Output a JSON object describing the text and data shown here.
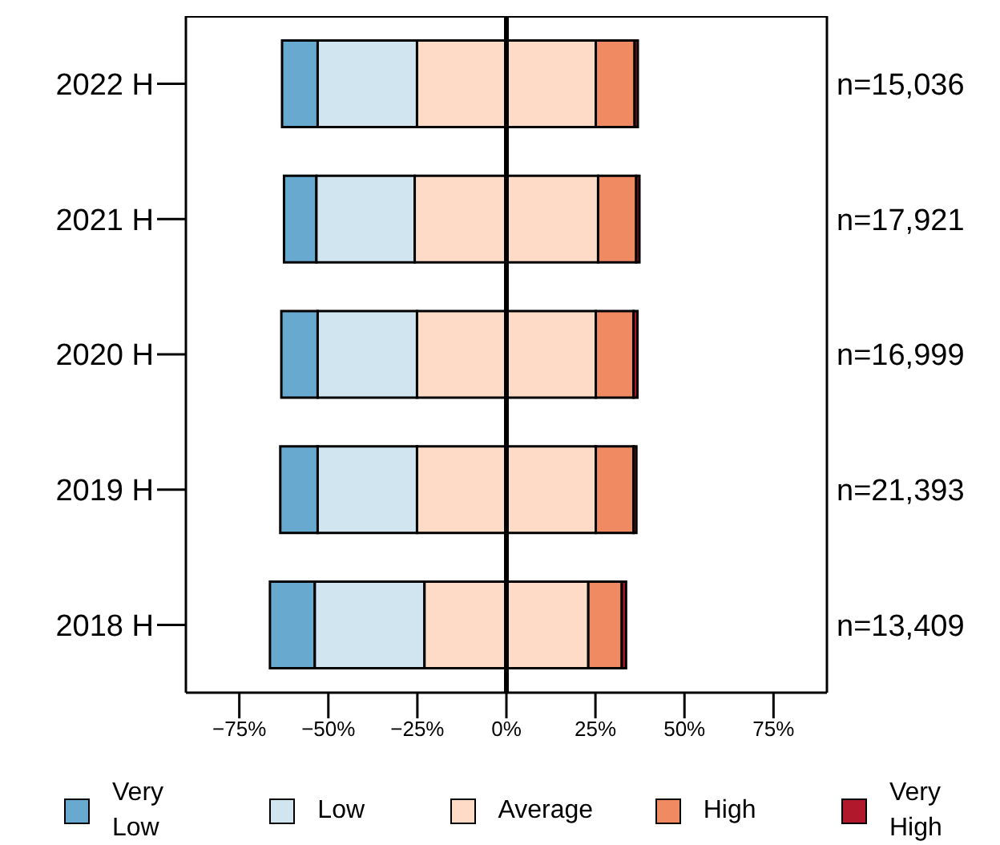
{
  "chart_data": {
    "type": "bar",
    "orientation": "horizontal",
    "categories": [
      "2022 H",
      "2021 H",
      "2020 H",
      "2019 H",
      "2018 H"
    ],
    "series": [
      {
        "name": "Very Low",
        "color": "#67a9cf",
        "base": [
          -63.0,
          -62.45,
          -63.2,
          -63.5,
          -66.4
        ],
        "values": [
          10.0,
          9.1,
          10.2,
          10.5,
          12.6
        ]
      },
      {
        "name": "Low",
        "color": "#d1e5f0",
        "base": [
          -53.0,
          -53.35,
          -53.0,
          -53.0,
          -53.8
        ],
        "values": [
          27.9,
          27.6,
          27.9,
          27.9,
          30.8
        ]
      },
      {
        "name": "Average",
        "color": "#fddbc7",
        "base": [
          -25.1,
          -25.75,
          -25.1,
          -25.1,
          -23.0
        ],
        "values": [
          50.2,
          51.5,
          50.2,
          50.2,
          46.0
        ]
      },
      {
        "name": "High",
        "color": "#ef8a62",
        "base": [
          25.1,
          25.75,
          25.1,
          25.1,
          23.0
        ],
        "values": [
          10.9,
          10.7,
          10.6,
          10.6,
          9.4
        ]
      },
      {
        "name": "Very High",
        "color": "#b2182b",
        "base": [
          36.0,
          36.45,
          35.7,
          35.7,
          32.4
        ],
        "values": [
          0.9,
          0.9,
          1.1,
          0.8,
          1.2
        ]
      }
    ],
    "xlim": [
      -90,
      90
    ],
    "xticks": [
      {
        "value": -75,
        "label": "−75%"
      },
      {
        "value": -50,
        "label": "−50%"
      },
      {
        "value": -25,
        "label": "−25%"
      },
      {
        "value": 0,
        "label": "0%"
      },
      {
        "value": 25,
        "label": "25%"
      },
      {
        "value": 50,
        "label": "50%"
      },
      {
        "value": 75,
        "label": "75%"
      }
    ],
    "ref_lines": [
      {
        "axis": "x",
        "value": 0,
        "color": "#000000"
      }
    ],
    "annotations": [
      "n=15,036",
      "n=17,921",
      "n=16,999",
      "n=21,393",
      "n=13,409"
    ],
    "legend": "bottom"
  }
}
